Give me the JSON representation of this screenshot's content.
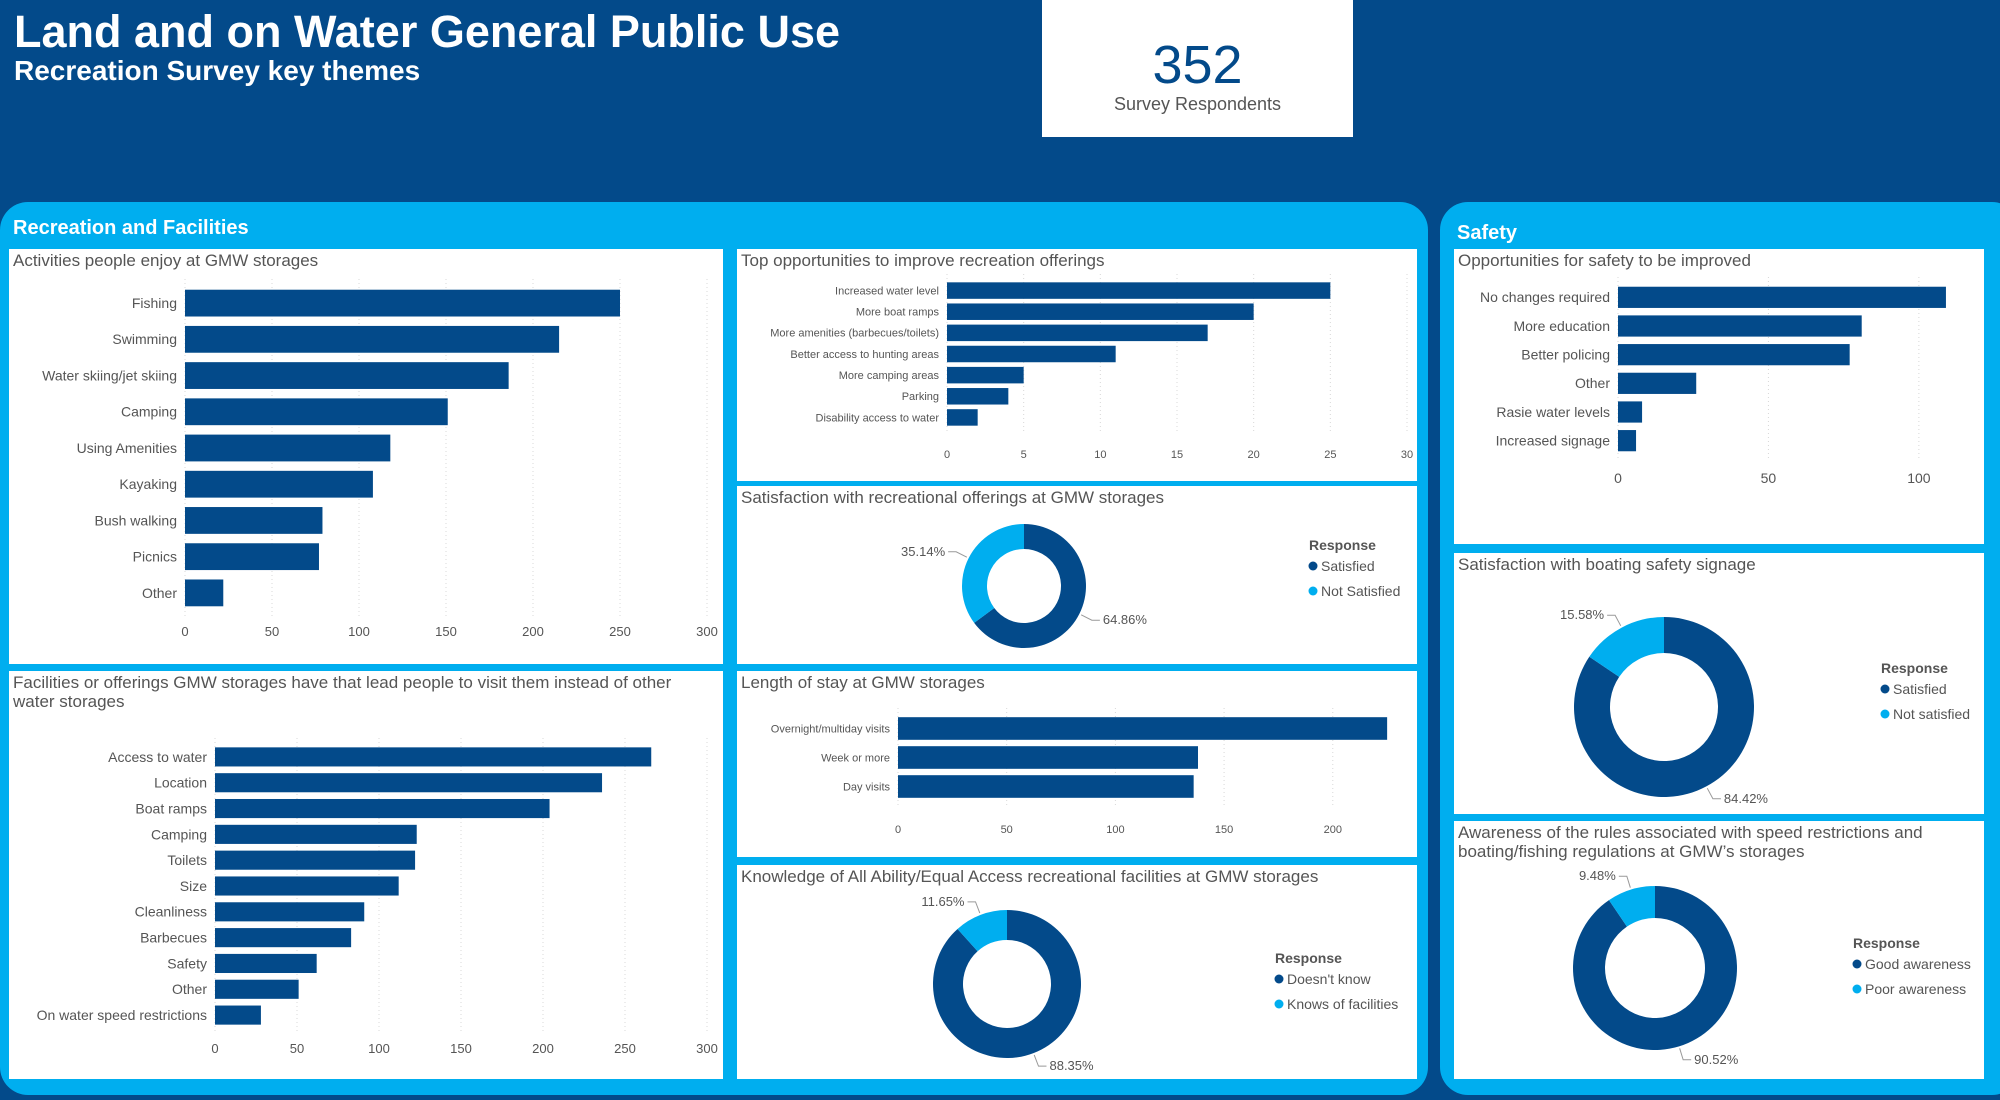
{
  "header": {
    "title": "Land and on Water General Public Use",
    "subtitle": "Recreation Survey key themes",
    "kpi_value": "352",
    "kpi_label": "Survey Respondents"
  },
  "sections": {
    "recreation": "Recreation and Facilities",
    "safety": "Safety"
  },
  "colors": {
    "background": "#034a8a",
    "section": "#00aeef",
    "bar": "#034a8a",
    "donut_primary": "#034a8a",
    "donut_secondary": "#00aeef"
  },
  "chart_data": [
    {
      "id": "activities",
      "type": "bar",
      "orientation": "horizontal",
      "title": "Activities people enjoy at GMW storages",
      "categories": [
        "Fishing",
        "Swimming",
        "Water skiing/jet skiing",
        "Camping",
        "Using Amenities",
        "Kayaking",
        "Bush walking",
        "Picnics",
        "Other"
      ],
      "values": [
        250,
        215,
        186,
        151,
        118,
        108,
        79,
        77,
        22
      ],
      "xlim": [
        0,
        300
      ],
      "ticks": [
        "0",
        "50",
        "100",
        "150",
        "200",
        "250",
        "300"
      ],
      "grid": true
    },
    {
      "id": "opportunities",
      "type": "bar",
      "orientation": "horizontal",
      "title": "Top opportunities to improve recreation offerings",
      "categories": [
        "Increased water level",
        "More boat ramps",
        "More amenities (barbecues/toilets)",
        "Better access to hunting areas",
        "More camping areas",
        "Parking",
        "Disability access to water"
      ],
      "values": [
        25,
        20,
        17,
        11,
        5,
        4,
        2
      ],
      "xlim": [
        0,
        30
      ],
      "ticks": [
        "0",
        "5",
        "10",
        "15",
        "20",
        "25",
        "30"
      ],
      "grid": true
    },
    {
      "id": "satisfaction_rec",
      "type": "pie",
      "donut": true,
      "title": "Satisfaction with recreational offerings at GMW storages",
      "legend_title": "Response",
      "labels": [
        "Satisfied",
        "Not Satisfied"
      ],
      "values": [
        64.86,
        35.14
      ],
      "value_labels": [
        "64.86%",
        "35.14%"
      ],
      "legend": "right"
    },
    {
      "id": "facilities",
      "type": "bar",
      "orientation": "horizontal",
      "title": "Facilities or offerings GMW storages have that lead people to visit them instead of other water storages",
      "categories": [
        "Access to water",
        "Location",
        "Boat ramps",
        "Camping",
        "Toilets",
        "Size",
        "Cleanliness",
        "Barbecues",
        "Safety",
        "Other",
        "On water speed restrictions"
      ],
      "values": [
        266,
        236,
        204,
        123,
        122,
        112,
        91,
        83,
        62,
        51,
        28
      ],
      "xlim": [
        0,
        300
      ],
      "ticks": [
        "0",
        "50",
        "100",
        "150",
        "200",
        "250",
        "300"
      ],
      "grid": true
    },
    {
      "id": "length_of_stay",
      "type": "bar",
      "orientation": "horizontal",
      "title": "Length of stay at GMW storages",
      "categories": [
        "Overnight/multiday visits",
        "Week or more",
        "Day visits"
      ],
      "values": [
        225,
        138,
        136
      ],
      "xlim": [
        0,
        230
      ],
      "ticks": [
        "0",
        "50",
        "100",
        "150",
        "200"
      ],
      "grid": true
    },
    {
      "id": "knowledge",
      "type": "pie",
      "donut": true,
      "title": "Knowledge of All Ability/Equal Access recreational facilities at GMW storages",
      "legend_title": "Response",
      "labels": [
        "Doesn't know",
        "Knows of facilities"
      ],
      "values": [
        88.35,
        11.65
      ],
      "value_labels": [
        "88.35%",
        "11.65%"
      ],
      "legend": "right"
    },
    {
      "id": "safety_opportunities",
      "type": "bar",
      "orientation": "horizontal",
      "title": "Opportunities for safety to be improved",
      "categories": [
        "No changes required",
        "More education",
        "Better policing",
        "Other",
        "Rasie water levels",
        "Increased signage"
      ],
      "values": [
        109,
        81,
        77,
        26,
        8,
        6
      ],
      "xlim": [
        0,
        115
      ],
      "ticks": [
        "0",
        "50",
        "100"
      ],
      "grid": true
    },
    {
      "id": "signage",
      "type": "pie",
      "donut": true,
      "title": "Satisfaction with boating safety signage",
      "legend_title": "Response",
      "labels": [
        "Satisfied",
        "Not satisfied"
      ],
      "values": [
        84.42,
        15.58
      ],
      "value_labels": [
        "84.42%",
        "15.58%"
      ],
      "legend": "right"
    },
    {
      "id": "awareness",
      "type": "pie",
      "donut": true,
      "title": "Awareness of the rules associated with speed restrictions and boating/fishing regulations at GMW’s storages",
      "legend_title": "Response",
      "labels": [
        "Good awareness",
        "Poor awareness"
      ],
      "values": [
        90.52,
        9.48
      ],
      "value_labels": [
        "90.52%",
        "9.48%"
      ],
      "legend": "right"
    }
  ]
}
